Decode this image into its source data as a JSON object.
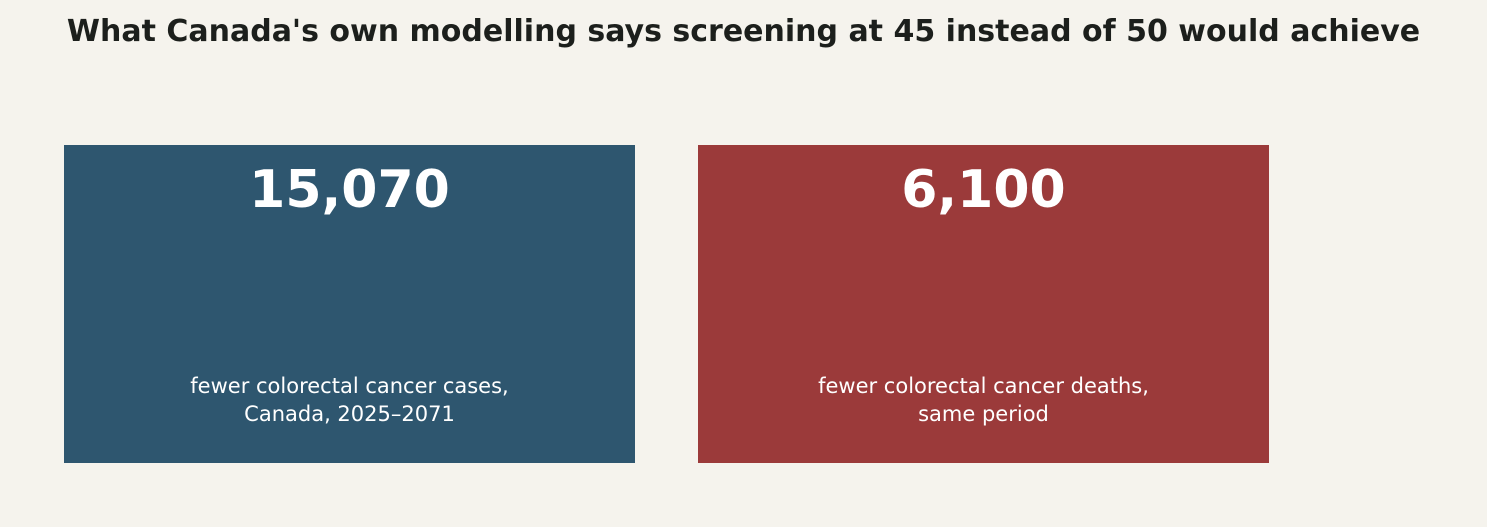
{
  "title": "What Canada's own modelling says screening at 45 instead of 50 would achieve",
  "chart_data": {
    "type": "table",
    "title": "What Canada's own modelling says screening at 45 instead of 50 would achieve",
    "items": [
      {
        "value": "15,070",
        "caption_line1": "fewer colorectal cancer cases,",
        "caption_line2": "Canada, 2025–2071",
        "color": "#2e566f"
      },
      {
        "value": "6,100",
        "caption_line1": "fewer colorectal cancer deaths,",
        "caption_line2": "same period",
        "color": "#9b3a3a"
      }
    ]
  }
}
